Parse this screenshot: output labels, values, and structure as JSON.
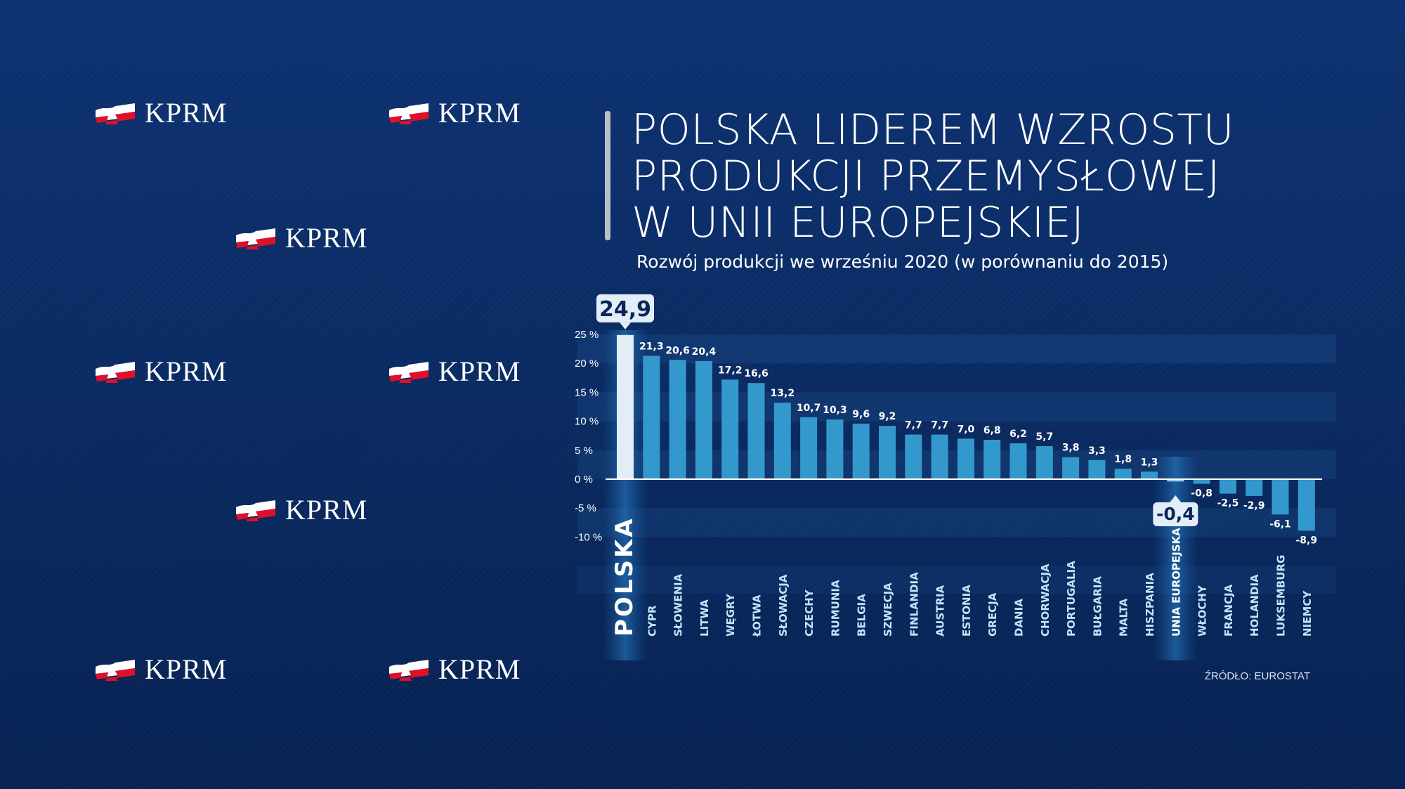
{
  "logos": {
    "text": "KPRM",
    "count": 8
  },
  "header": {
    "title_lines": [
      "POLSKA LIDEREM WZROSTU",
      "PRODUKCJI PRZEMYSŁOWEJ",
      "W UNII EUROPEJSKIEJ"
    ],
    "subtitle": "Rozwój produkcji we wrześniu 2020 (w porównaniu do 2015)"
  },
  "source": "ŹRÓDŁO: EUROSTAT",
  "colors": {
    "background": "#0b2c66",
    "bar": "#3399cc",
    "highlight_bar": "#e3edf7",
    "callout": "#e3edf7",
    "callout_text": "#0a2658"
  },
  "chart_data": {
    "type": "bar",
    "title": "POLSKA LIDEREM WZROSTU PRODUKCJI PRZEMYSŁOWEJ W UNII EUROPEJSKIEJ",
    "subtitle": "Rozwój produkcji we wrześniu 2020 (w porównaniu do 2015)",
    "categories": [
      "POLSKA",
      "CYPR",
      "SŁOWENIA",
      "LITWA",
      "WĘGRY",
      "ŁOTWA",
      "SŁOWACJA",
      "CZECHY",
      "RUMUNIA",
      "BELGIA",
      "SZWECJA",
      "FINLANDIA",
      "AUSTRIA",
      "ESTONIA",
      "GRECJA",
      "DANIA",
      "CHORWACJA",
      "PORTUGALIA",
      "BUŁGARIA",
      "MALTA",
      "HISZPANIA",
      "UNIA EUROPEJSKA",
      "WŁOCHY",
      "FRANCJA",
      "HOLANDIA",
      "LUKSEMBURG",
      "NIEMCY"
    ],
    "values": [
      24.9,
      21.3,
      20.6,
      20.4,
      17.2,
      16.6,
      13.2,
      10.7,
      10.3,
      9.6,
      9.2,
      7.7,
      7.7,
      7.0,
      6.8,
      6.2,
      5.7,
      3.8,
      3.3,
      1.8,
      1.3,
      -0.4,
      -0.8,
      -2.5,
      -2.9,
      -6.1,
      -8.9
    ],
    "value_labels": [
      "24,9",
      "21,3",
      "20,6",
      "20,4",
      "17,2",
      "16,6",
      "13,2",
      "10,7",
      "10,3",
      "9,6",
      "9,2",
      "7,7",
      "7,7",
      "7,0",
      "6,8",
      "6,2",
      "5,7",
      "3,8",
      "3,3",
      "1,8",
      "1,3",
      "-0,4",
      "-0,8",
      "-2,5",
      "-2,9",
      "-6,1",
      "-8,9"
    ],
    "highlighted": [
      "POLSKA",
      "UNIA EUROPEJSKA"
    ],
    "yticks": [
      25,
      20,
      15,
      10,
      5,
      0,
      -5,
      -10
    ],
    "ytick_labels": [
      "25 %",
      "20 %",
      "15 %",
      "10 %",
      "5 %",
      "0 %",
      "-5 %",
      "-10 %"
    ],
    "ylim": [
      -10,
      25
    ],
    "xlabel": "",
    "ylabel": "",
    "grid": "alternating horizontal bands"
  }
}
